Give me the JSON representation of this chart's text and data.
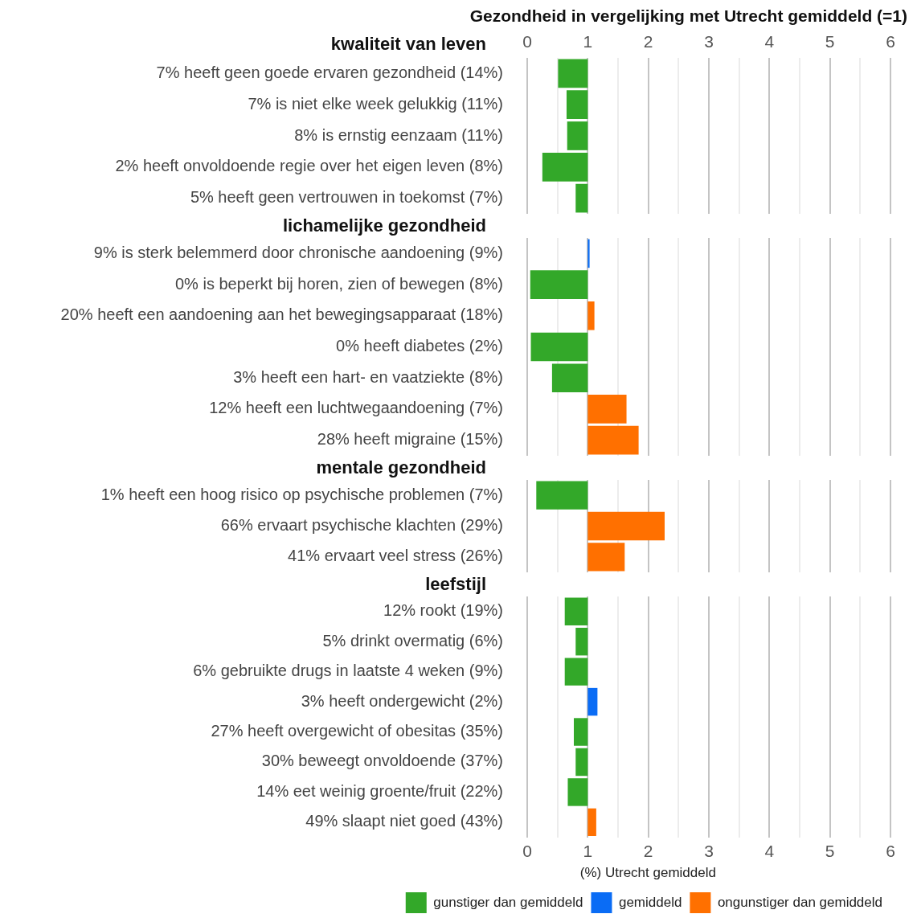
{
  "chart_data": [
    {
      "type": "bar",
      "orientation": "horizontal",
      "title": "Gezondheid in vergelijking met Utrecht gemiddeld (=1)",
      "subtitle": "kwaliteit van leven",
      "categories": [
        "7% heeft geen goede ervaren gezondheid (14%)",
        "7% is niet elke week gelukkig (11%)",
        "8% is ernstig eenzaam (11%)",
        "2% heeft onvoldoende regie over het eigen leven (8%)",
        "5% heeft geen vertrouwen in toekomst (7%)"
      ],
      "series": [
        {
          "color": "#33a829",
          "base": [
            1,
            1,
            1,
            1,
            1
          ],
          "values": [
            -0.49,
            -0.35,
            -0.34,
            -0.75,
            -0.2
          ]
        }
      ],
      "xlim": [
        0,
        6
      ],
      "xticks": [
        0,
        {
          "value": 0.5,
          "label": null
        },
        1,
        {
          "value": 1.5,
          "label": null
        },
        2,
        {
          "value": 2.5,
          "label": null
        },
        3,
        {
          "value": 3.5,
          "label": null
        },
        4,
        {
          "value": 4.5,
          "label": null
        },
        5,
        {
          "value": 5.5,
          "label": null
        },
        6
      ],
      "x2lim": [
        0,
        6
      ],
      "x2ticks": [
        0,
        1,
        2,
        3,
        4,
        5,
        6
      ],
      "tick_labels": "y",
      "grid": "x"
    },
    {
      "type": "bar",
      "orientation": "horizontal",
      "title": "lichamelijke gezondheid",
      "categories": [
        "9% is sterk belemmerd door chronische aandoening (9%)",
        "0% is beperkt bij horen, zien of bewegen (8%)",
        "20% heeft een aandoening aan het bewegingsapparaat (18%)",
        "0% heeft diabetes (2%)",
        "3% heeft een hart- en vaatziekte (8%)",
        "12% heeft een luchtwegaandoening (7%)",
        "28% heeft migraine (15%)"
      ],
      "series": [
        {
          "color": "#33a829",
          "base": [
            null,
            1,
            null,
            1,
            1,
            null,
            null
          ],
          "values": [
            null,
            -0.95,
            null,
            -0.94,
            -0.59,
            null,
            null
          ]
        },
        {
          "color": "#0a6cf5",
          "base": [
            1,
            null,
            null,
            null,
            null,
            null,
            null
          ],
          "values": [
            0.03,
            null,
            null,
            null,
            null,
            null,
            null
          ]
        },
        {
          "color": "#ff7000",
          "base": [
            null,
            null,
            1,
            null,
            null,
            1,
            1
          ],
          "values": [
            null,
            null,
            0.11,
            null,
            null,
            0.64,
            0.84
          ]
        }
      ],
      "xlim": [
        0,
        6
      ],
      "xticks": [
        0,
        {
          "value": 0.5,
          "label": null
        },
        1,
        {
          "value": 1.5,
          "label": null
        },
        2,
        {
          "value": 2.5,
          "label": null
        },
        3,
        {
          "value": 3.5,
          "label": null
        },
        4,
        {
          "value": 4.5,
          "label": null
        },
        5,
        {
          "value": 5.5,
          "label": null
        },
        6
      ],
      "tick_labels": "y",
      "grid": "x"
    },
    {
      "type": "bar",
      "orientation": "horizontal",
      "title": "mentale gezondheid",
      "categories": [
        "1% heeft een hoog risico op psychische problemen (7%)",
        "66% ervaart psychische klachten (29%)",
        "41% ervaart veel stress (26%)"
      ],
      "series": [
        {
          "color": "#33a829",
          "base": [
            1,
            null,
            null
          ],
          "values": [
            -0.85,
            null,
            null
          ]
        },
        {
          "color": "#ff7000",
          "base": [
            null,
            1,
            1
          ],
          "values": [
            null,
            1.27,
            0.61
          ]
        }
      ],
      "xlim": [
        0,
        6
      ],
      "xticks": [
        0,
        {
          "value": 0.5,
          "label": null
        },
        1,
        {
          "value": 1.5,
          "label": null
        },
        2,
        {
          "value": 2.5,
          "label": null
        },
        3,
        {
          "value": 3.5,
          "label": null
        },
        4,
        {
          "value": 4.5,
          "label": null
        },
        5,
        {
          "value": 5.5,
          "label": null
        },
        6
      ],
      "tick_labels": "y",
      "grid": "x"
    },
    {
      "type": "bar",
      "orientation": "horizontal",
      "title": "leefstijl",
      "categories": [
        "12% rookt (19%)",
        "5% drinkt overmatig (6%)",
        "6% gebruikte drugs in laatste 4 weken (9%)",
        "3% heeft ondergewicht (2%)",
        "27% heeft overgewicht of obesitas (35%)",
        "30% beweegt onvoldoende (37%)",
        "14% eet weinig groente/fruit (22%)",
        "49% slaapt niet goed (43%)"
      ],
      "series": [
        {
          "name": "gunstiger dan gemiddeld",
          "color": "#33a829",
          "base": [
            1,
            1,
            1,
            null,
            1,
            1,
            1,
            null
          ],
          "values": [
            -0.38,
            -0.2,
            -0.38,
            null,
            -0.23,
            -0.2,
            -0.33,
            null
          ]
        },
        {
          "name": "gemiddeld",
          "color": "#0a6cf5",
          "base": [
            null,
            null,
            null,
            1,
            null,
            null,
            null,
            null
          ],
          "values": [
            null,
            null,
            null,
            0.16,
            null,
            null,
            null,
            null
          ]
        },
        {
          "name": "ongunstiger dan gemiddeld",
          "color": "#ff7000",
          "base": [
            null,
            null,
            null,
            null,
            null,
            null,
            null,
            1
          ],
          "values": [
            null,
            null,
            null,
            null,
            null,
            null,
            null,
            0.14
          ]
        }
      ],
      "xlim": [
        0,
        6
      ],
      "xticks": [
        0,
        {
          "value": 0.5,
          "label": null
        },
        1,
        {
          "value": 1.5,
          "label": null
        },
        2,
        {
          "value": 2.5,
          "label": null
        },
        3,
        {
          "value": 3.5,
          "label": null
        },
        4,
        {
          "value": 4.5,
          "label": null
        },
        5,
        {
          "value": 5.5,
          "label": null
        },
        6
      ],
      "legend": "bottom",
      "legend_title": "(%) Utrecht gemiddeld",
      "grid": "x"
    }
  ]
}
